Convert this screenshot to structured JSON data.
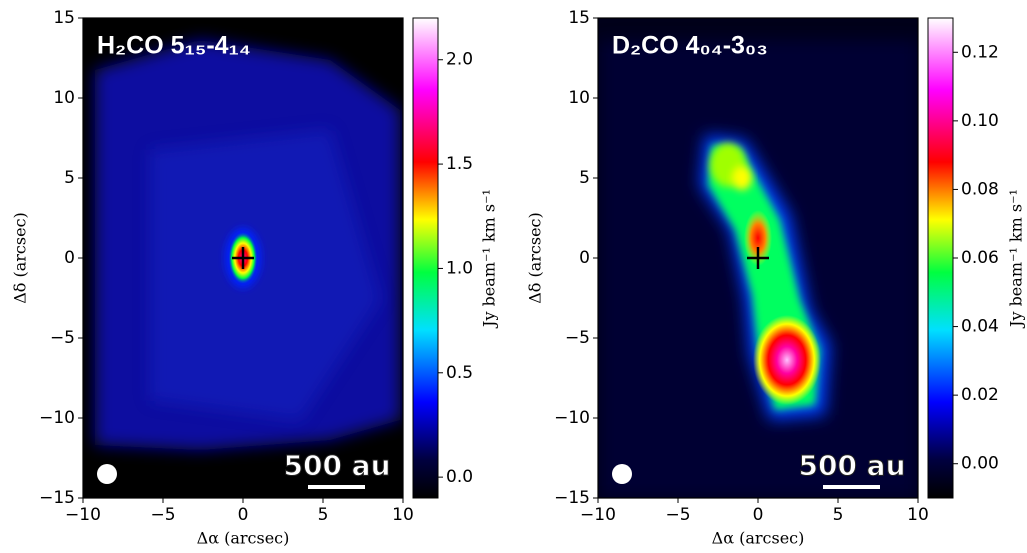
{
  "chart_data": [
    {
      "type": "image",
      "title": "H₂CO 5₁₅-4₁₄",
      "xlabel": "Δα (arcsec)",
      "ylabel": "Δδ (arcsec)",
      "xlim": [
        -10,
        10
      ],
      "ylim": [
        -15,
        15
      ],
      "xticks": [
        {
          "value": -10,
          "label": "−10"
        },
        {
          "value": -5,
          "label": "−5"
        },
        0,
        5,
        10
      ],
      "yticks": [
        {
          "value": -15,
          "label": "−15"
        },
        {
          "value": -10,
          "label": "−10"
        },
        {
          "value": -5,
          "label": "−5"
        },
        0,
        5,
        10,
        15
      ],
      "colorbar": {
        "label": "Jy beam⁻¹ km s⁻¹",
        "lim": [
          -0.1,
          2.2
        ],
        "ticks": [
          {
            "value": 0,
            "label": "0.0"
          },
          0.5,
          {
            "value": 1,
            "label": "1.0"
          },
          1.5,
          {
            "value": 2,
            "label": "2.0"
          }
        ]
      },
      "scalebar_label": "500 au"
    },
    {
      "type": "image",
      "title": "D₂CO 4₀₄-3₀₃",
      "xlabel": "Δα (arcsec)",
      "ylabel": "Δδ (arcsec)",
      "xlim": [
        -10,
        10
      ],
      "ylim": [
        -15,
        15
      ],
      "xticks": [
        {
          "value": -10,
          "label": "−10"
        },
        {
          "value": -5,
          "label": "−5"
        },
        0,
        5,
        10
      ],
      "yticks": [
        {
          "value": -15,
          "label": "−15"
        },
        {
          "value": -10,
          "label": "−10"
        },
        {
          "value": -5,
          "label": "−5"
        },
        0,
        5,
        10,
        15
      ],
      "colorbar": {
        "label": "Jy beam⁻¹ km s⁻¹",
        "lim": [
          -0.01,
          0.13
        ],
        "ticks": [
          {
            "value": 0,
            "label": "0.00"
          },
          {
            "value": 0.02,
            "label": "0.02"
          },
          {
            "value": 0.04,
            "label": "0.04"
          },
          {
            "value": 0.06,
            "label": "0.06"
          },
          {
            "value": 0.08,
            "label": "0.08"
          },
          {
            "value": 0.1,
            "label": "0.10"
          },
          {
            "value": 0.12,
            "label": "0.12"
          }
        ]
      },
      "scalebar_label": "500 au"
    }
  ]
}
